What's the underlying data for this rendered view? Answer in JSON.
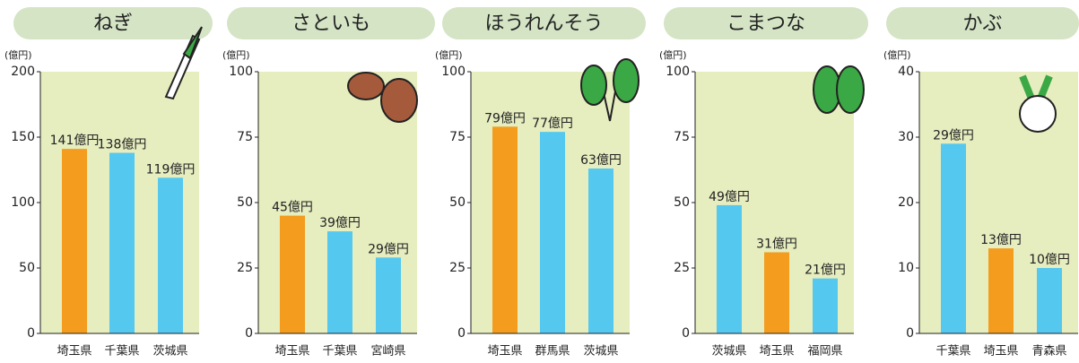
{
  "chart_data": [
    {
      "type": "bar",
      "title": "ねぎ",
      "ylabel": "(億円)",
      "categories": [
        "埼玉県",
        "千葉県",
        "茨城県"
      ],
      "values": [
        141,
        138,
        119
      ],
      "value_labels": [
        "141億円",
        "138億円",
        "119億円"
      ],
      "colors": [
        "#f39c1e",
        "#55c8f0",
        "#55c8f0"
      ],
      "ylim": [
        0,
        200
      ],
      "yticks": [
        0,
        50,
        100,
        150,
        200
      ]
    },
    {
      "type": "bar",
      "title": "さといも",
      "ylabel": "(億円)",
      "categories": [
        "埼玉県",
        "千葉県",
        "宮崎県"
      ],
      "values": [
        45,
        39,
        29
      ],
      "value_labels": [
        "45億円",
        "39億円",
        "29億円"
      ],
      "colors": [
        "#f39c1e",
        "#55c8f0",
        "#55c8f0"
      ],
      "ylim": [
        0,
        100
      ],
      "yticks": [
        0,
        25,
        50,
        75,
        100
      ]
    },
    {
      "type": "bar",
      "title": "ほうれんそう",
      "ylabel": "(億円)",
      "categories": [
        "埼玉県",
        "群馬県",
        "茨城県"
      ],
      "values": [
        79,
        77,
        63
      ],
      "value_labels": [
        "79億円",
        "77億円",
        "63億円"
      ],
      "colors": [
        "#f39c1e",
        "#55c8f0",
        "#55c8f0"
      ],
      "ylim": [
        0,
        100
      ],
      "yticks": [
        0,
        25,
        50,
        75,
        100
      ]
    },
    {
      "type": "bar",
      "title": "こまつな",
      "ylabel": "(億円)",
      "categories": [
        "茨城県",
        "埼玉県",
        "福岡県"
      ],
      "values": [
        49,
        31,
        21
      ],
      "value_labels": [
        "49億円",
        "31億円",
        "21億円"
      ],
      "colors": [
        "#55c8f0",
        "#f39c1e",
        "#55c8f0"
      ],
      "ylim": [
        0,
        100
      ],
      "yticks": [
        0,
        25,
        50,
        75,
        100
      ]
    },
    {
      "type": "bar",
      "title": "かぶ",
      "ylabel": "(億円)",
      "categories": [
        "千葉県",
        "埼玉県",
        "青森県"
      ],
      "values": [
        29,
        13,
        10
      ],
      "value_labels": [
        "29億円",
        "13億円",
        "10億円"
      ],
      "colors": [
        "#55c8f0",
        "#f39c1e",
        "#55c8f0"
      ],
      "ylim": [
        0,
        40
      ],
      "yticks": [
        0,
        10,
        20,
        30,
        40
      ]
    }
  ]
}
